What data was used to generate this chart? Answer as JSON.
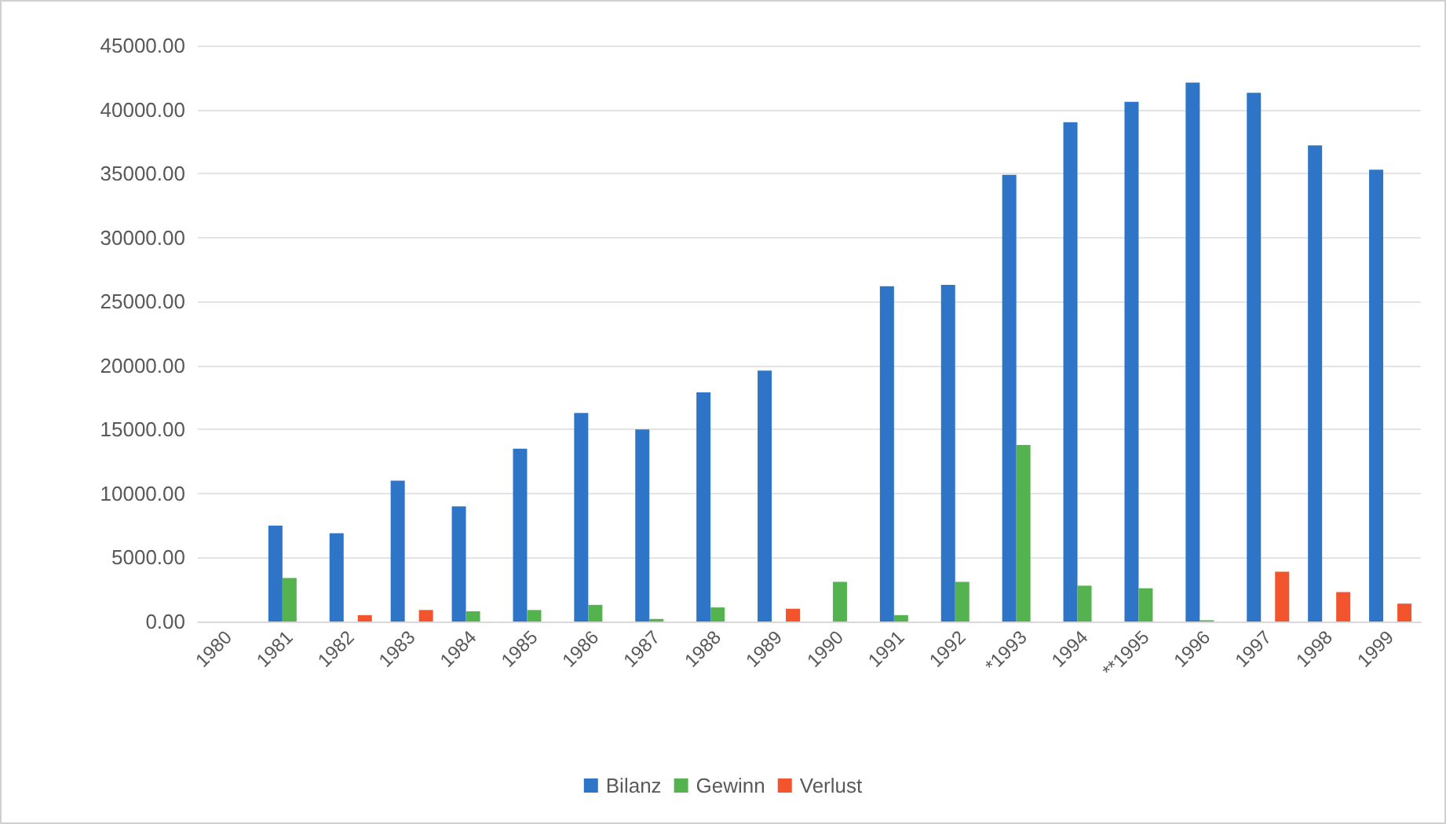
{
  "chart_data": {
    "type": "bar",
    "categories": [
      "1980",
      "1981",
      "1982",
      "1983",
      "1984",
      "1985",
      "1986",
      "1987",
      "1988",
      "1989",
      "1990",
      "1991",
      "1992",
      "*1993",
      "1994",
      "**1995",
      "1996",
      "1997",
      "1998",
      "1999"
    ],
    "series": [
      {
        "name": "Bilanz",
        "color": "#2e75c8",
        "values": [
          null,
          7500,
          6900,
          11000,
          9000,
          13500,
          16300,
          15000,
          17900,
          19600,
          null,
          26200,
          26300,
          34900,
          39000,
          40600,
          42100,
          41300,
          37200,
          35300
        ]
      },
      {
        "name": "Gewinn",
        "color": "#55b34f",
        "values": [
          null,
          3400,
          null,
          null,
          800,
          900,
          1300,
          200,
          1100,
          null,
          3100,
          500,
          3100,
          13800,
          2800,
          2600,
          100,
          null,
          null,
          null
        ]
      },
      {
        "name": "Verlust",
        "color": "#f2542d",
        "values": [
          null,
          null,
          500,
          900,
          null,
          null,
          null,
          null,
          null,
          1000,
          null,
          null,
          null,
          null,
          null,
          null,
          null,
          3900,
          2300,
          1400
        ]
      }
    ],
    "ylim": [
      0,
      45000
    ],
    "yticks": [
      {
        "value": 0,
        "label": "0.00"
      },
      {
        "value": 5000,
        "label": "5000.00"
      },
      {
        "value": 10000,
        "label": "10000.00"
      },
      {
        "value": 15000,
        "label": "15000.00"
      },
      {
        "value": 20000,
        "label": "20000.00"
      },
      {
        "value": 25000,
        "label": "25000.00"
      },
      {
        "value": 30000,
        "label": "30000.00"
      },
      {
        "value": 35000,
        "label": "35000.00"
      },
      {
        "value": 40000,
        "label": "40000.00"
      },
      {
        "value": 45000,
        "label": "45000.00"
      }
    ],
    "grid": "y",
    "legend": "bottom"
  }
}
